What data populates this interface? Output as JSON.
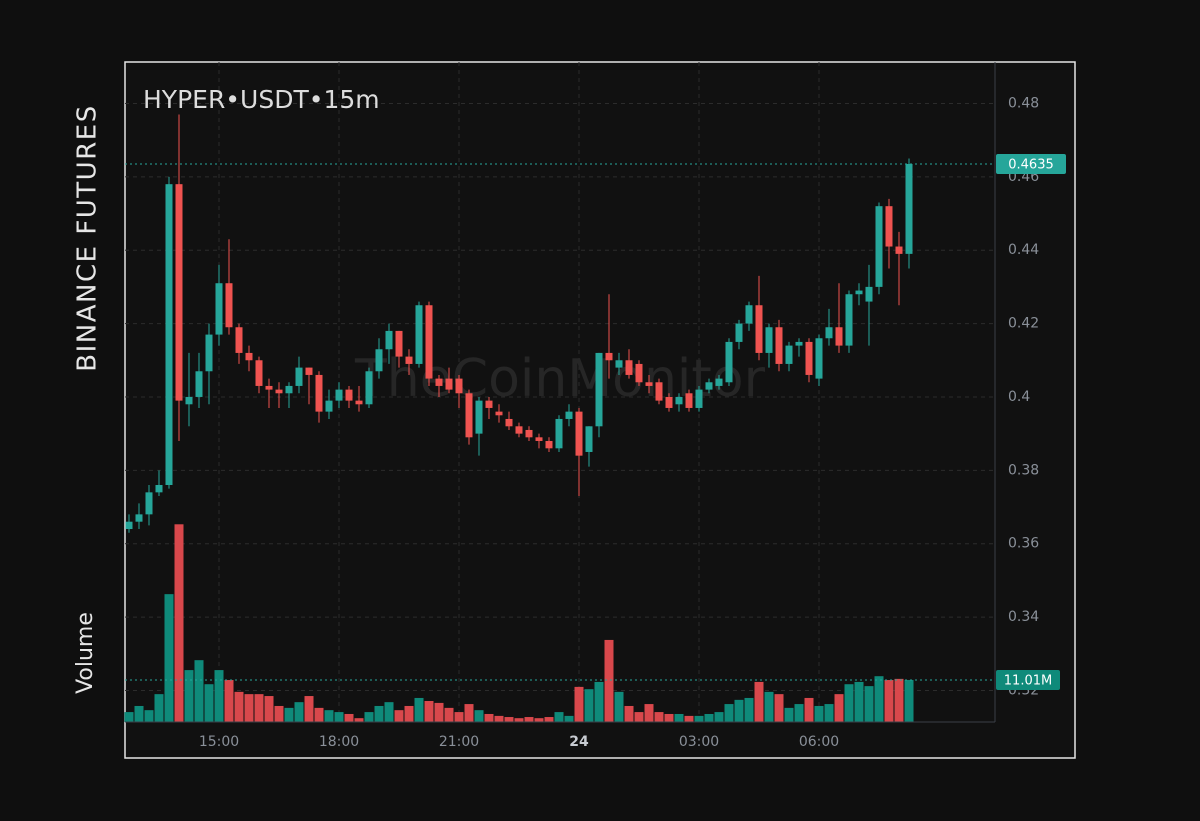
{
  "chart_data": {
    "type": "candlestick",
    "title": "HYPER•USDT•15m",
    "exchange_label": "BINANCE FUTURES",
    "volume_label": "Volume",
    "watermark": "TheCoinMonitor",
    "up_color": "#26a69a",
    "down_color": "#ef5350",
    "volume_up_color": "#0f8a7a",
    "volume_down_color": "#d9484c",
    "grid": true,
    "open": [
      0.364,
      0.366,
      0.368,
      0.374,
      0.376,
      0.458,
      0.398,
      0.4,
      0.407,
      0.417,
      0.431,
      0.419,
      0.412,
      0.41,
      0.403,
      0.402,
      0.401,
      0.403,
      0.408,
      0.406,
      0.396,
      0.399,
      0.402,
      0.399,
      0.398,
      0.407,
      0.413,
      0.418,
      0.411,
      0.409,
      0.425,
      0.405,
      0.405,
      0.405,
      0.401,
      0.39,
      0.399,
      0.396,
      0.394,
      0.392,
      0.391,
      0.389,
      0.388,
      0.386,
      0.394,
      0.396,
      0.385,
      0.392,
      0.412,
      0.408,
      0.41,
      0.409,
      0.404,
      0.404,
      0.4,
      0.398,
      0.401,
      0.397,
      0.402,
      0.403,
      0.404,
      0.415,
      0.42,
      0.425,
      0.412,
      0.419,
      0.409,
      0.414,
      0.415,
      0.405,
      0.416,
      0.419,
      0.414,
      0.428,
      0.426,
      0.43,
      0.452,
      0.441,
      0.439
    ],
    "high": [
      0.368,
      0.371,
      0.376,
      0.38,
      0.46,
      0.477,
      0.412,
      0.412,
      0.42,
      0.436,
      0.443,
      0.42,
      0.414,
      0.411,
      0.405,
      0.404,
      0.404,
      0.411,
      0.408,
      0.407,
      0.402,
      0.404,
      0.403,
      0.403,
      0.408,
      0.416,
      0.42,
      0.418,
      0.413,
      0.426,
      0.426,
      0.406,
      0.408,
      0.406,
      0.402,
      0.4,
      0.4,
      0.398,
      0.396,
      0.393,
      0.392,
      0.39,
      0.389,
      0.395,
      0.398,
      0.397,
      0.392,
      0.412,
      0.428,
      0.412,
      0.413,
      0.41,
      0.406,
      0.405,
      0.401,
      0.401,
      0.402,
      0.403,
      0.405,
      0.406,
      0.416,
      0.421,
      0.426,
      0.433,
      0.42,
      0.421,
      0.415,
      0.416,
      0.416,
      0.417,
      0.424,
      0.431,
      0.429,
      0.431,
      0.436,
      0.453,
      0.454,
      0.445,
      0.465
    ],
    "low": [
      0.363,
      0.364,
      0.365,
      0.373,
      0.375,
      0.388,
      0.392,
      0.397,
      0.398,
      0.414,
      0.417,
      0.409,
      0.407,
      0.401,
      0.397,
      0.397,
      0.397,
      0.401,
      0.398,
      0.393,
      0.394,
      0.397,
      0.397,
      0.396,
      0.397,
      0.405,
      0.409,
      0.408,
      0.406,
      0.408,
      0.403,
      0.4,
      0.401,
      0.397,
      0.387,
      0.384,
      0.394,
      0.393,
      0.391,
      0.389,
      0.388,
      0.386,
      0.385,
      0.385,
      0.392,
      0.373,
      0.381,
      0.389,
      0.405,
      0.406,
      0.405,
      0.403,
      0.401,
      0.398,
      0.396,
      0.396,
      0.396,
      0.396,
      0.401,
      0.402,
      0.403,
      0.413,
      0.418,
      0.41,
      0.408,
      0.407,
      0.407,
      0.411,
      0.404,
      0.403,
      0.414,
      0.412,
      0.412,
      0.425,
      0.414,
      0.428,
      0.435,
      0.425,
      0.435
    ],
    "close": [
      0.366,
      0.368,
      0.374,
      0.376,
      0.458,
      0.399,
      0.4,
      0.407,
      0.417,
      0.431,
      0.419,
      0.412,
      0.41,
      0.403,
      0.402,
      0.401,
      0.403,
      0.408,
      0.406,
      0.396,
      0.399,
      0.402,
      0.399,
      0.398,
      0.407,
      0.413,
      0.418,
      0.411,
      0.409,
      0.425,
      0.405,
      0.403,
      0.402,
      0.401,
      0.389,
      0.399,
      0.397,
      0.395,
      0.392,
      0.39,
      0.389,
      0.388,
      0.386,
      0.394,
      0.396,
      0.384,
      0.392,
      0.412,
      0.41,
      0.41,
      0.406,
      0.404,
      0.403,
      0.399,
      0.397,
      0.4,
      0.397,
      0.402,
      0.404,
      0.405,
      0.415,
      0.42,
      0.425,
      0.412,
      0.419,
      0.409,
      0.414,
      0.415,
      0.406,
      0.416,
      0.419,
      0.414,
      0.428,
      0.429,
      0.43,
      0.452,
      0.441,
      0.439,
      0.4635
    ],
    "volume": [
      2.6,
      4.2,
      3.1,
      7.3,
      33.5,
      51.8,
      13.6,
      16.2,
      9.9,
      13.6,
      11.0,
      7.9,
      7.3,
      7.3,
      6.8,
      4.2,
      3.7,
      5.2,
      6.8,
      3.7,
      3.1,
      2.6,
      2.1,
      1.0,
      2.6,
      4.2,
      5.2,
      3.1,
      4.2,
      6.3,
      5.5,
      5.0,
      3.7,
      2.6,
      4.7,
      3.1,
      2.1,
      1.6,
      1.3,
      1.0,
      1.3,
      1.0,
      1.3,
      2.6,
      1.6,
      9.2,
      8.6,
      10.5,
      21.5,
      7.9,
      4.2,
      2.6,
      4.7,
      2.6,
      2.1,
      2.1,
      1.6,
      1.6,
      2.1,
      2.6,
      4.7,
      5.8,
      6.3,
      10.5,
      7.9,
      7.3,
      3.7,
      4.7,
      6.3,
      4.2,
      4.7,
      7.3,
      9.9,
      10.5,
      9.4,
      12.0,
      11.0,
      11.3,
      11.01
    ],
    "last_volume_label": "11.01M",
    "volume_ylim": [
      0,
      60
    ],
    "ylim": [
      0.3114,
      0.4913
    ],
    "yticks": [
      0.32,
      0.34,
      0.36,
      0.38,
      0.4,
      0.42,
      0.44,
      0.46,
      0.48
    ],
    "xlim": [
      -0.4,
      86.6
    ],
    "xticks": [
      {
        "value": 9,
        "label": "15:00"
      },
      {
        "value": 21,
        "label": "18:00"
      },
      {
        "value": 33,
        "label": "21:00"
      },
      {
        "value": 45,
        "label": "24"
      },
      {
        "value": 57,
        "label": "03:00"
      },
      {
        "value": 69,
        "label": "06:00"
      }
    ]
  }
}
